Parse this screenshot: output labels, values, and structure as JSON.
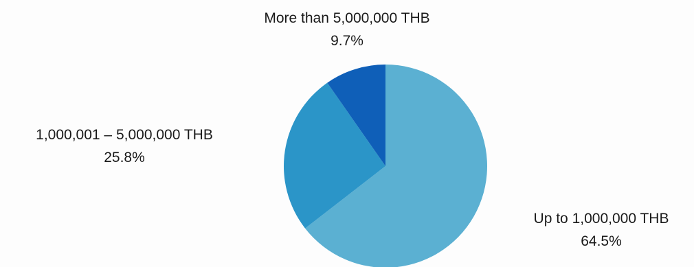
{
  "chart_data": {
    "type": "pie",
    "title": "",
    "slices": [
      {
        "label": "Up to 1,000,000 THB",
        "value": 64.5,
        "value_label": "64.5%",
        "color": "#5bb0d2"
      },
      {
        "label": "1,000,001 – 5,000,000 THB",
        "value": 25.8,
        "value_label": "25.8%",
        "color": "#2b95c8"
      },
      {
        "label": "More than 5,000,000 THB",
        "value": 9.7,
        "value_label": "9.7%",
        "color": "#0f5fb8"
      }
    ],
    "start_angle": "12 o'clock",
    "direction": "clockwise",
    "legend": "none"
  }
}
